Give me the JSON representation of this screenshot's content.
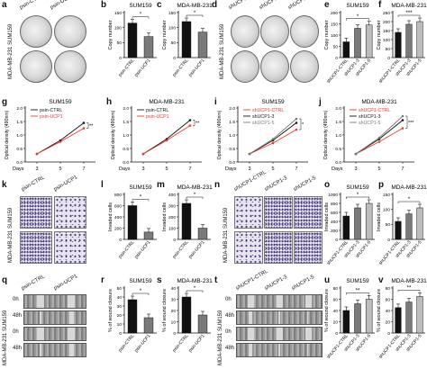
{
  "panel_letters": {
    "a": "a",
    "b": "b",
    "c": "c",
    "d": "d",
    "e": "e",
    "f": "f",
    "g": "g",
    "h": "h",
    "i": "i",
    "j": "j",
    "k": "k",
    "l": "l",
    "m": "m",
    "n": "n",
    "o": "o",
    "p": "p",
    "q": "q",
    "r": "r",
    "s": "s",
    "t": "t",
    "u": "u",
    "v": "v"
  },
  "row1": {
    "a": {
      "left_label": "MDA-MB-231  SUM159",
      "top_labels": [
        "psin-CTRL",
        "psin-UCP1"
      ]
    },
    "d": {
      "left_label": "MDA-MB-231  SUM159",
      "top_labels": [
        "shUCP1-CTRL",
        "shUCP1-3",
        "shUCP1-5"
      ]
    }
  },
  "row3": {
    "k": {
      "left_label": "MDA-MB-231  SUM159",
      "top_labels": [
        "psin-CTRL",
        "psin-UCP1"
      ]
    },
    "n": {
      "left_label": "MDA-MB-231  SUM159",
      "top_labels": [
        "shUCP1-CTRL",
        "shUCP1-3",
        "shUCP1-5"
      ]
    }
  },
  "row4": {
    "q": {
      "left_label": "MDA-MB-231  SUM159",
      "top_labels": [
        "psin-CTRL",
        "psin-UCP1"
      ],
      "row_labels": [
        "0h",
        "48h",
        "0h",
        "48h"
      ]
    },
    "t": {
      "left_label": "MDA-MB-231  SUM159",
      "top_labels": [
        "shUCP1-CTRL",
        "shUCP1-3",
        "shUCP1-5"
      ],
      "row_labels": [
        "0h",
        "48h",
        "0h",
        "48h"
      ]
    }
  },
  "colors": {
    "black": "#111111",
    "red": "#e53935",
    "gray": "#7a7a7a",
    "light": "#bdbdbd"
  },
  "chart_data": [
    {
      "id": "b",
      "type": "bar",
      "title": "SUM159",
      "ylabel": "Copy number",
      "ylim": [
        0,
        150
      ],
      "yticks": [
        0,
        50,
        100,
        150
      ],
      "categories": [
        "psin-CTRL",
        "psin-UCP1"
      ],
      "values": [
        115,
        70
      ],
      "sig": "*"
    },
    {
      "id": "c",
      "type": "bar",
      "title": "MDA-MB-231",
      "ylabel": "Copy number",
      "ylim": [
        0,
        150
      ],
      "yticks": [
        0,
        50,
        100,
        150
      ],
      "categories": [
        "psin-CTRL",
        "psin-UCP1"
      ],
      "values": [
        120,
        85
      ],
      "sig": "*"
    },
    {
      "id": "e",
      "type": "bar",
      "title": "SUM159",
      "ylabel": "Copy number",
      "ylim": [
        0,
        200
      ],
      "yticks": [
        0,
        50,
        100,
        150,
        200
      ],
      "categories": [
        "shUCP1-CTRL",
        "shUCP1-3",
        "shUCP1-5"
      ],
      "values": [
        70,
        130,
        145
      ],
      "sig": "*"
    },
    {
      "id": "f",
      "type": "bar",
      "title": "MDA-MB-231",
      "ylabel": "Copy number",
      "ylim": [
        0,
        250
      ],
      "yticks": [
        0,
        50,
        100,
        150,
        200,
        250
      ],
      "categories": [
        "shUCP1-CTRL",
        "shUCP1-3",
        "shUCP1-5"
      ],
      "values": [
        140,
        185,
        200
      ],
      "sig": "***"
    },
    {
      "id": "g",
      "type": "line",
      "title": "SUM159",
      "ylabel": "Optical density (490nm)",
      "xlabel": "Days",
      "x": [
        3,
        5,
        7
      ],
      "ylim": [
        0,
        2.0
      ],
      "yticks": [
        0.0,
        0.5,
        1.0,
        1.5,
        2.0
      ],
      "series": [
        {
          "name": "psin-CTRL",
          "values": [
            0.3,
            0.8,
            1.45
          ]
        },
        {
          "name": "psin-UCP1",
          "values": [
            0.3,
            0.75,
            1.25
          ]
        }
      ],
      "sig": "**"
    },
    {
      "id": "h",
      "type": "line",
      "title": "MDA-MB-231",
      "ylabel": "Optical density (490nm)",
      "xlabel": "Days",
      "x": [
        3,
        5,
        7
      ],
      "ylim": [
        0,
        2.0
      ],
      "yticks": [
        0.0,
        0.5,
        1.0,
        1.5,
        2.0
      ],
      "series": [
        {
          "name": "psin-CTRL",
          "values": [
            0.3,
            0.85,
            1.55
          ]
        },
        {
          "name": "psin-UCP1",
          "values": [
            0.3,
            0.8,
            1.35
          ]
        }
      ],
      "sig": "**"
    },
    {
      "id": "i",
      "type": "line",
      "title": "SUM159",
      "ylabel": "Optical density (490nm)",
      "xlabel": "Days",
      "x": [
        3,
        5,
        7
      ],
      "ylim": [
        0,
        2.0
      ],
      "yticks": [
        0.0,
        0.5,
        1.0,
        1.5,
        2.0
      ],
      "series": [
        {
          "name": "shUCP1-CTRL",
          "values": [
            0.3,
            0.7,
            1.2
          ]
        },
        {
          "name": "shUCP1-3",
          "values": [
            0.3,
            0.8,
            1.45
          ]
        },
        {
          "name": "shUCP1-5",
          "values": [
            0.3,
            0.85,
            1.6
          ]
        }
      ],
      "sig": "*"
    },
    {
      "id": "j",
      "type": "line",
      "title": "MDA-MB-231",
      "ylabel": "Optical density (490nm)",
      "xlabel": "Days",
      "x": [
        3,
        5,
        7
      ],
      "ylim": [
        0,
        2.0
      ],
      "yticks": [
        0.0,
        0.5,
        1.0,
        1.5,
        2.0
      ],
      "series": [
        {
          "name": "shUCP1-CTRL",
          "values": [
            0.3,
            0.75,
            1.25
          ]
        },
        {
          "name": "shUCP1-3",
          "values": [
            0.3,
            0.85,
            1.55
          ]
        },
        {
          "name": "shUCP1-5",
          "values": [
            0.3,
            0.9,
            1.7
          ]
        }
      ],
      "sig": "***"
    },
    {
      "id": "l",
      "type": "bar",
      "title": "SUM159",
      "ylabel": "Invaded cells",
      "ylim": [
        0,
        800
      ],
      "yticks": [
        0,
        200,
        400,
        600,
        800
      ],
      "categories": [
        "psin-CTRL",
        "psin-UCP1"
      ],
      "values": [
        600,
        130
      ],
      "sig": "*"
    },
    {
      "id": "m",
      "type": "bar",
      "title": "MDA-MB-231",
      "ylabel": "Invaded cells",
      "ylim": [
        0,
        400
      ],
      "yticks": [
        0,
        100,
        200,
        300,
        400
      ],
      "categories": [
        "psin-CTRL",
        "psin-UCP1"
      ],
      "values": [
        320,
        100
      ],
      "sig": "*"
    },
    {
      "id": "o",
      "type": "bar",
      "title": "SUM159",
      "ylabel": "Invaded cells",
      "ylim": [
        0,
        1000
      ],
      "yticks": [
        0,
        200,
        400,
        600,
        800,
        1000
      ],
      "categories": [
        "shUCP1-CTRL",
        "shUCP1-3",
        "shUCP1-5"
      ],
      "values": [
        520,
        700,
        800
      ],
      "sig": "*"
    },
    {
      "id": "p",
      "type": "bar",
      "title": "MDA-MB-231",
      "ylabel": "Invaded cells",
      "ylim": [
        0,
        150
      ],
      "yticks": [
        0,
        50,
        100,
        150
      ],
      "categories": [
        "shUCP1-CTRL",
        "shUCP1-3",
        "shUCP1-5"
      ],
      "values": [
        60,
        85,
        105
      ],
      "sig": "*"
    },
    {
      "id": "r",
      "type": "bar",
      "title": "SUM159",
      "ylabel": "% of wound closure",
      "ylim": [
        0,
        50
      ],
      "yticks": [
        0,
        10,
        20,
        30,
        40,
        50
      ],
      "categories": [
        "psin-CTRL",
        "psin-UCP1"
      ],
      "values": [
        37,
        17
      ],
      "sig": "*"
    },
    {
      "id": "s",
      "type": "bar",
      "title": "MDA-MB-231",
      "ylabel": "% of wound closure",
      "ylim": [
        0,
        40
      ],
      "yticks": [
        0,
        10,
        20,
        30,
        40
      ],
      "categories": [
        "psin-CTRL",
        "psin-UCP1"
      ],
      "values": [
        32,
        16
      ],
      "sig": "*"
    },
    {
      "id": "u",
      "type": "bar",
      "title": "SUM159",
      "ylabel": "% of wound closure",
      "ylim": [
        0,
        80
      ],
      "yticks": [
        0,
        20,
        40,
        60,
        80
      ],
      "categories": [
        "shUCP1-CTRL",
        "shUCP1-3",
        "shUCP1-5"
      ],
      "values": [
        40,
        52,
        60
      ],
      "sig": "**"
    },
    {
      "id": "v",
      "type": "bar",
      "title": "MDA-MB-231",
      "ylabel": "% of wound closure",
      "ylim": [
        0,
        80
      ],
      "yticks": [
        0,
        20,
        40,
        60,
        80
      ],
      "categories": [
        "shUCP1-CTRL",
        "shUCP1-3",
        "shUCP1-5"
      ],
      "values": [
        45,
        55,
        65
      ],
      "sig": "**"
    }
  ]
}
